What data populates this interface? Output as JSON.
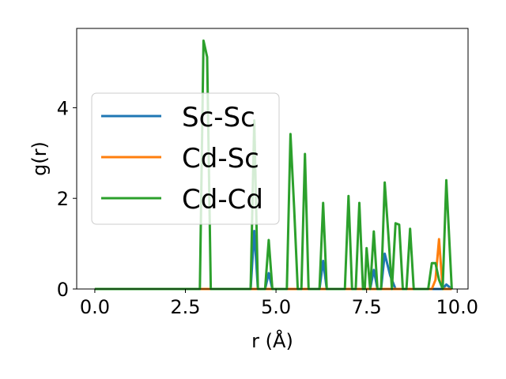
{
  "chart_data": {
    "type": "line",
    "title": "",
    "xlabel": "r (Å)",
    "ylabel": "g(r)",
    "xlim": [
      -0.5,
      10.3
    ],
    "ylim": [
      0,
      5.75
    ],
    "xticks": [
      0.0,
      2.5,
      5.0,
      7.5,
      10.0
    ],
    "xtick_labels": [
      "0.0",
      "2.5",
      "5.0",
      "7.5",
      "10.0"
    ],
    "yticks": [
      0,
      2,
      4
    ],
    "ytick_labels": [
      "0",
      "2",
      "4"
    ],
    "grid": false,
    "legend_position": "center-left",
    "series": [
      {
        "name": "Sc-Sc",
        "color": "#1f77b4",
        "points": [
          [
            0,
            0
          ],
          [
            4.3,
            0
          ],
          [
            4.4,
            1.28
          ],
          [
            4.5,
            0
          ],
          [
            4.7,
            0
          ],
          [
            4.8,
            0.35
          ],
          [
            4.9,
            0
          ],
          [
            6.2,
            0
          ],
          [
            6.3,
            0.62
          ],
          [
            6.4,
            0
          ],
          [
            7.6,
            0
          ],
          [
            7.7,
            0.42
          ],
          [
            7.8,
            0
          ],
          [
            7.9,
            0
          ],
          [
            8.0,
            0.78
          ],
          [
            8.15,
            0.3
          ],
          [
            8.3,
            0
          ],
          [
            9.6,
            0
          ],
          [
            9.7,
            0.1
          ],
          [
            9.85,
            0
          ]
        ]
      },
      {
        "name": "Cd-Sc",
        "color": "#ff7f0e",
        "points": [
          [
            0,
            0
          ],
          [
            9.3,
            0
          ],
          [
            9.4,
            0.2
          ],
          [
            9.5,
            1.1
          ],
          [
            9.6,
            0
          ],
          [
            9.85,
            0
          ]
        ]
      },
      {
        "name": "Cd-Cd",
        "color": "#2ca02c",
        "points": [
          [
            0,
            0
          ],
          [
            2.9,
            0
          ],
          [
            3.0,
            5.48
          ],
          [
            3.1,
            5.12
          ],
          [
            3.2,
            0
          ],
          [
            4.3,
            0
          ],
          [
            4.4,
            3.72
          ],
          [
            4.5,
            0
          ],
          [
            4.7,
            0
          ],
          [
            4.8,
            1.08
          ],
          [
            4.9,
            0
          ],
          [
            5.3,
            0
          ],
          [
            5.4,
            3.42
          ],
          [
            5.5,
            1.8
          ],
          [
            5.6,
            0
          ],
          [
            5.7,
            0
          ],
          [
            5.8,
            2.98
          ],
          [
            5.9,
            0
          ],
          [
            6.2,
            0
          ],
          [
            6.3,
            1.9
          ],
          [
            6.4,
            0
          ],
          [
            6.9,
            0
          ],
          [
            7.0,
            2.05
          ],
          [
            7.1,
            0
          ],
          [
            7.2,
            0
          ],
          [
            7.3,
            1.9
          ],
          [
            7.4,
            0
          ],
          [
            7.45,
            0
          ],
          [
            7.5,
            0.9
          ],
          [
            7.6,
            0
          ],
          [
            7.7,
            1.27
          ],
          [
            7.8,
            0
          ],
          [
            7.9,
            0
          ],
          [
            8.0,
            2.35
          ],
          [
            8.1,
            1.2
          ],
          [
            8.2,
            0
          ],
          [
            8.3,
            1.45
          ],
          [
            8.4,
            1.42
          ],
          [
            8.5,
            0
          ],
          [
            8.6,
            0
          ],
          [
            8.7,
            1.33
          ],
          [
            8.8,
            0
          ],
          [
            9.2,
            0
          ],
          [
            9.3,
            0.57
          ],
          [
            9.4,
            0.57
          ],
          [
            9.5,
            0.2
          ],
          [
            9.6,
            0
          ],
          [
            9.7,
            2.4
          ],
          [
            9.85,
            0
          ]
        ]
      }
    ]
  }
}
